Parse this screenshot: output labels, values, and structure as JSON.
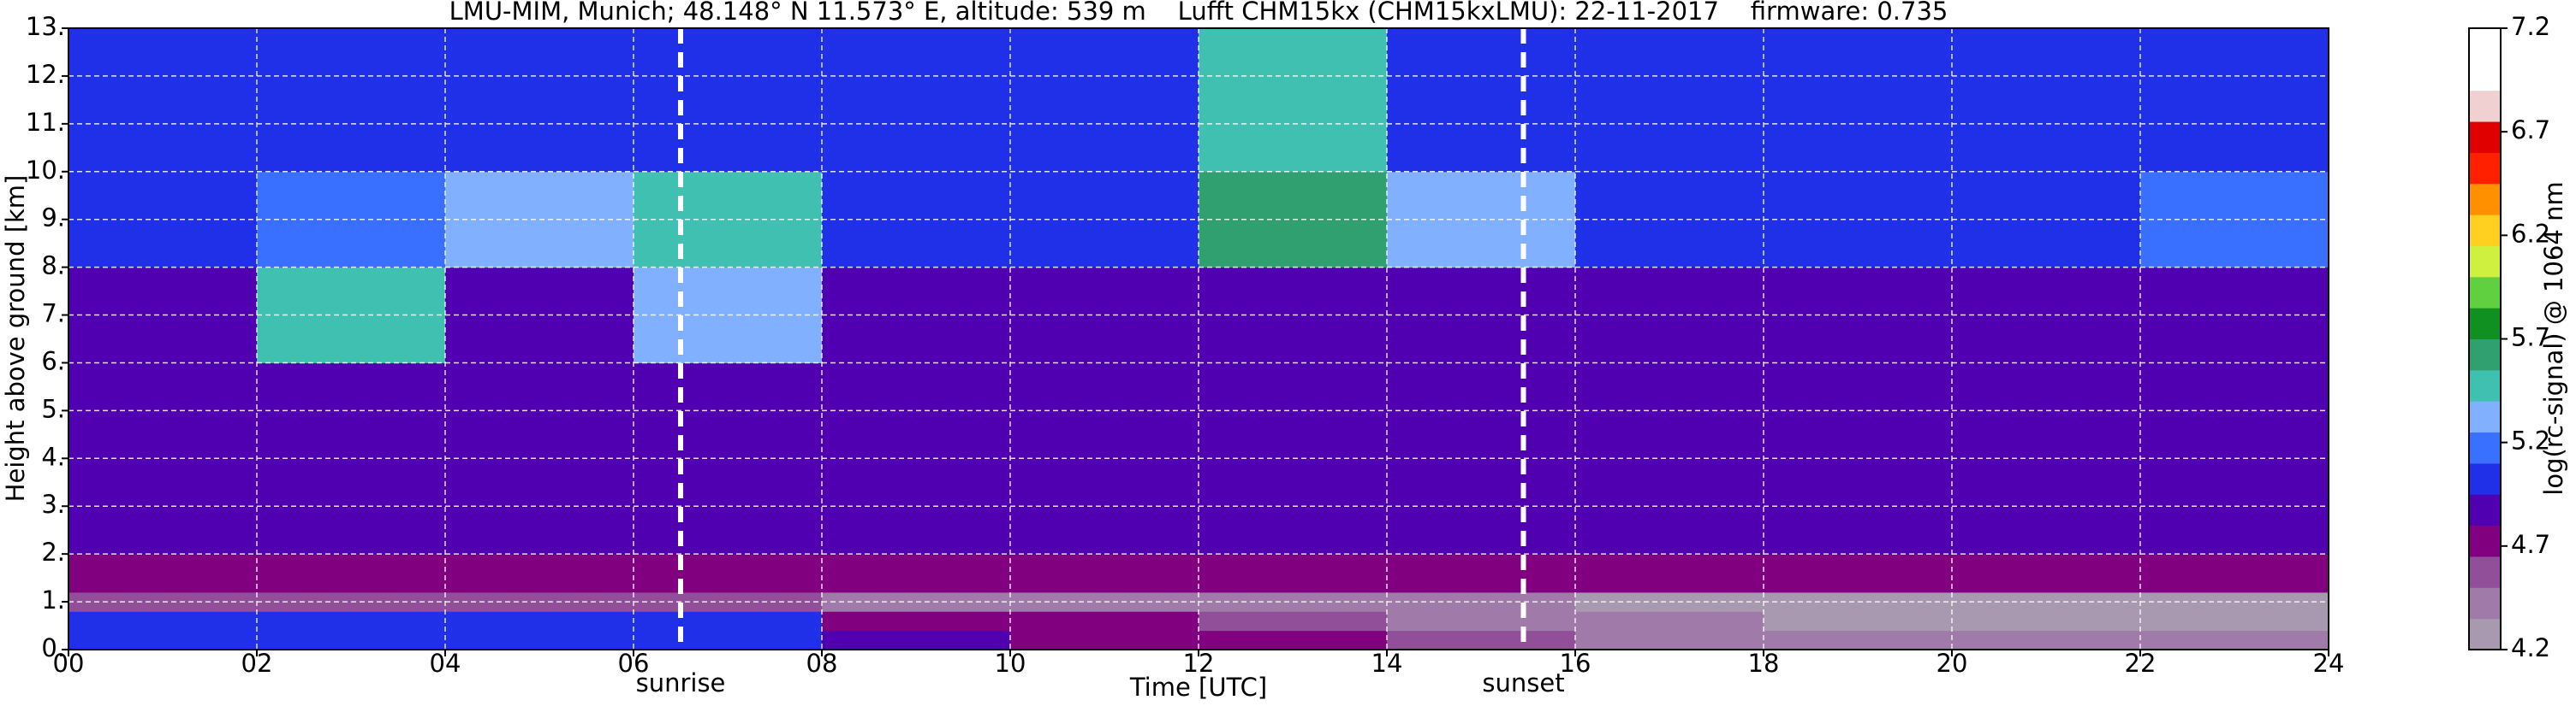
{
  "chart_data": {
    "type": "heatmap",
    "title": "LMU-MIM, Munich; 48.148° N 11.573° E, altitude: 539 m    Lufft CHM15kx (CHM15kxLMU): 22-11-2017    firmware: 0.735",
    "x_label": "Time [UTC]",
    "y_label": "Height above ground [km]",
    "colorbar_label": "log(rc-signal) @ 1064 nm",
    "x_edges": [
      0,
      2,
      4,
      6,
      8,
      10,
      12,
      14,
      16,
      18,
      20,
      22,
      24
    ],
    "y_edges": [
      0,
      0.4,
      0.8,
      1.2,
      2,
      4,
      6,
      8,
      10,
      13
    ],
    "z": [
      [
        5.0,
        5.0,
        5.1,
        5.0,
        4.9,
        4.8,
        4.75,
        4.6,
        4.5,
        4.45,
        4.4,
        4.4
      ],
      [
        5.1,
        5.1,
        5.1,
        5.0,
        4.8,
        4.7,
        4.6,
        4.5,
        4.4,
        4.35,
        4.3,
        4.3
      ],
      [
        4.6,
        4.6,
        4.6,
        4.6,
        4.5,
        4.45,
        4.4,
        4.4,
        4.35,
        4.35,
        4.3,
        4.3
      ],
      [
        4.8,
        4.8,
        4.8,
        4.8,
        4.8,
        4.8,
        4.8,
        4.8,
        4.8,
        4.8,
        4.8,
        4.8
      ],
      [
        4.85,
        4.85,
        4.85,
        4.85,
        4.85,
        4.85,
        4.85,
        4.85,
        4.85,
        4.85,
        4.85,
        4.85
      ],
      [
        4.9,
        4.9,
        4.9,
        4.9,
        4.9,
        4.9,
        4.9,
        4.9,
        4.9,
        4.9,
        4.9,
        4.9
      ],
      [
        4.9,
        5.4,
        4.9,
        5.3,
        4.9,
        4.9,
        4.9,
        4.9,
        4.9,
        4.9,
        4.9,
        4.9
      ],
      [
        4.95,
        5.2,
        5.3,
        5.4,
        4.95,
        4.95,
        5.6,
        5.3,
        4.95,
        4.95,
        4.95,
        5.2
      ],
      [
        5.0,
        4.95,
        4.95,
        4.95,
        4.95,
        4.95,
        5.5,
        5.1,
        4.95,
        4.95,
        4.95,
        5.1
      ]
    ],
    "xlim": [
      0,
      24
    ],
    "ylim": [
      0,
      13
    ],
    "clim": [
      4.2,
      7.2
    ],
    "xticks": [
      {
        "value": 0,
        "label": "00"
      },
      {
        "value": 2,
        "label": "02"
      },
      {
        "value": 4,
        "label": "04"
      },
      {
        "value": 6,
        "label": "06"
      },
      {
        "value": 8,
        "label": "08"
      },
      {
        "value": 10,
        "label": "10"
      },
      {
        "value": 12,
        "label": "12"
      },
      {
        "value": 14,
        "label": "14"
      },
      {
        "value": 16,
        "label": "16"
      },
      {
        "value": 18,
        "label": "18"
      },
      {
        "value": 20,
        "label": "20"
      },
      {
        "value": 22,
        "label": "22"
      },
      {
        "value": 24,
        "label": "24"
      }
    ],
    "yticks": [
      {
        "value": 0,
        "label": "0."
      },
      {
        "value": 1,
        "label": "1."
      },
      {
        "value": 2,
        "label": "2."
      },
      {
        "value": 3,
        "label": "3."
      },
      {
        "value": 4,
        "label": "4."
      },
      {
        "value": 5,
        "label": "5."
      },
      {
        "value": 6,
        "label": "6."
      },
      {
        "value": 7,
        "label": "7."
      },
      {
        "value": 8,
        "label": "8."
      },
      {
        "value": 9,
        "label": "9."
      },
      {
        "value": 10,
        "label": "10."
      },
      {
        "value": 11,
        "label": "11."
      },
      {
        "value": 12,
        "label": "12."
      },
      {
        "value": 13,
        "label": "13."
      }
    ],
    "cticks": [
      4.2,
      4.7,
      5.2,
      5.7,
      6.2,
      6.7,
      7.2
    ],
    "colorscale": [
      "#a898b0",
      "#a07aa8",
      "#904f98",
      "#800080",
      "#5000b0",
      "#2030e8",
      "#3a70ff",
      "#80b0ff",
      "#40c0b0",
      "#30a070",
      "#109020",
      "#60d040",
      "#d0f040",
      "#ffd020",
      "#ff9000",
      "#ff2000",
      "#e00000",
      "#f0d0d0",
      "#ffffff",
      "#ffffff"
    ],
    "annotations": [
      {
        "text": "sunrise",
        "x": 6.5
      },
      {
        "text": "sunset",
        "x": 15.45
      }
    ],
    "grid": true
  }
}
